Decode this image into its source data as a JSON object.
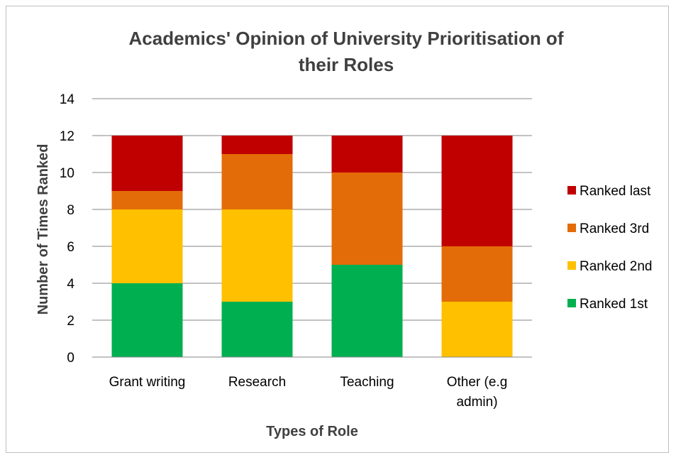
{
  "chart_data": {
    "type": "bar",
    "stacked": true,
    "title": "Academics' Opinion of University Prioritisation of their Roles",
    "title_lines": [
      "Academics' Opinion of University Prioritisation of",
      "their Roles"
    ],
    "xlabel": "Types of Role",
    "ylabel": "Number of Times Ranked",
    "categories": [
      "Grant writing",
      "Research",
      "Teaching",
      "Other (e.g admin)"
    ],
    "category_lines": [
      [
        "Grant writing"
      ],
      [
        "Research"
      ],
      [
        "Teaching"
      ],
      [
        "Other (e.g",
        "admin)"
      ]
    ],
    "ylim": [
      0,
      14
    ],
    "yticks": [
      0,
      2,
      4,
      6,
      8,
      10,
      12,
      14
    ],
    "grid": true,
    "legend_position": "right",
    "series": [
      {
        "name": "Ranked 1st",
        "color": "#00b050",
        "values": [
          4,
          3,
          5,
          0
        ]
      },
      {
        "name": "Ranked 2nd",
        "color": "#ffc000",
        "values": [
          4,
          5,
          0,
          3
        ]
      },
      {
        "name": "Ranked 3rd",
        "color": "#e36c09",
        "values": [
          1,
          3,
          5,
          3
        ]
      },
      {
        "name": "Ranked last",
        "color": "#c00000",
        "values": [
          3,
          1,
          2,
          6
        ]
      }
    ]
  }
}
